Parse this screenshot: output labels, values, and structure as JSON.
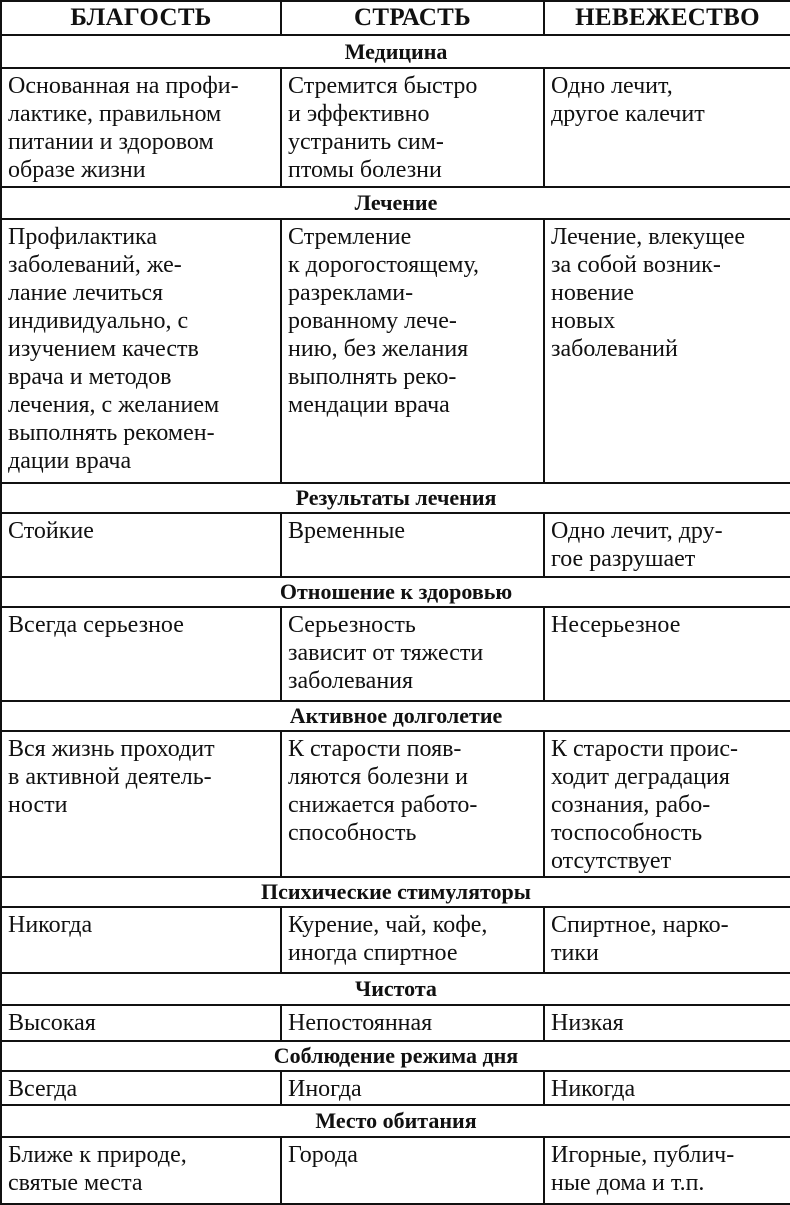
{
  "headers": [
    "БЛАГОСТЬ",
    "СТРАСТЬ",
    "НЕВЕЖЕСТВО"
  ],
  "sections": [
    {
      "title": "Медицина",
      "cells": [
        "Основанная на профи-\nлактике, правильном\nпитании и здоровом\nобразе жизни",
        "Стремится быстро\nи эффективно\nустранить сим-\nптомы болезни",
        "Одно лечит,\nдругое калечит"
      ]
    },
    {
      "title": "Лечение",
      "cells": [
        "Профилактика\nзаболеваний, же-\nлание лечиться\nиндивидуально, с\nизучением качеств\nврача и методов\nлечения, с желанием\nвыполнять рекомен-\nдации врача",
        "Стремление\nк дорогостоящему,\nразреклами-\nрованному лече-\nнию, без желания\nвыполнять реко-\nмендации врача",
        "Лечение, влекущее\nза собой возник-\nновение\nновых\nзаболеваний"
      ]
    },
    {
      "title": "Результаты лечения",
      "cells": [
        "Стойкие",
        "Временные",
        "Одно лечит, дру-\nгое разрушает"
      ]
    },
    {
      "title": "Отношение к здоровью",
      "cells": [
        "Всегда серьезное",
        "Серьезность\nзависит от тяжести\nзаболевания",
        "Несерьезное"
      ]
    },
    {
      "title": "Активное долголетие",
      "cells": [
        "Вся жизнь проходит\nв активной деятель-\nности",
        "К старости появ-\nляются болезни и\nснижается работо-\nспособность",
        "К старости проис-\nходит деградация\nсознания, рабо-\nтоспособность\nотсутствует"
      ]
    },
    {
      "title": "Психические стимуляторы",
      "cells": [
        "Никогда",
        "Курение, чай, кофе,\nиногда спиртное",
        "Спиртное, нарко-\nтики"
      ]
    },
    {
      "title": "Чистота",
      "cells": [
        "Высокая",
        "Непостоянная",
        "Низкая"
      ]
    },
    {
      "title": "Соблюдение режима дня",
      "cells": [
        "Всегда",
        "Иногда",
        "Никогда"
      ]
    },
    {
      "title": "Место обитания",
      "cells": [
        "Ближе к природе,\nсвятые места",
        "Города",
        "Игорные, публич-\nные дома и т.п."
      ]
    }
  ]
}
